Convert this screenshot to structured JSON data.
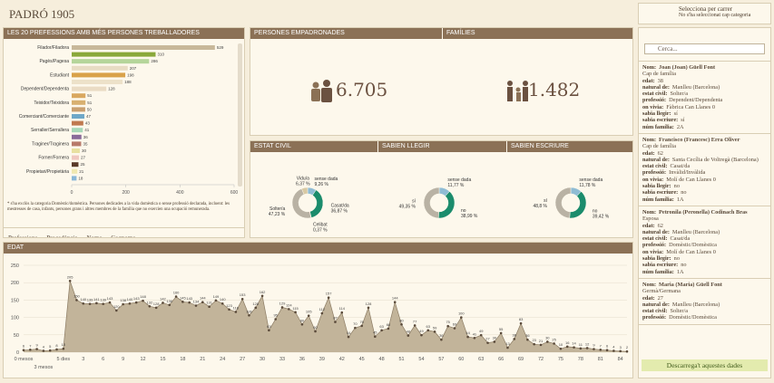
{
  "header": {
    "title": "PADRÓ 1905",
    "filter_title": "Selecciona per carrer",
    "filter_note": "No s'ha seleccionat cap categoria"
  },
  "kpis": [
    {
      "label": "PERSONES EMPADRONADES",
      "value": "6.705"
    },
    {
      "label": "FAMÍLIES",
      "value": "1.482"
    }
  ],
  "footnote": "* s'ha exclòs la categoria Domèstic/domèstica. Persones dedicades a la vida domèstica o sense professió declarada, incloent: les mestresses de casa, infants, persones grans i altres membres de la família que no exercien una ocupació remunerada.",
  "tabs": [
    "Professions",
    "Procedència",
    "Noms",
    "Cognoms"
  ],
  "search_placeholder": "Cerca...",
  "download": "Descarrega't aquestes dades",
  "people": [
    {
      "name_label": "Nom:",
      "name": "Joan (Joan) Güell Font",
      "role": "Cap de família",
      "fields": [
        {
          "label": "edat:",
          "value": "38"
        },
        {
          "label": "natural de:",
          "value": "Manlleu (Barcelona)"
        },
        {
          "label": "estat civil:",
          "value": "Solter/a"
        },
        {
          "label": "professió:",
          "value": "Dependent/Dependenta"
        },
        {
          "label": "on vivia:",
          "value": "Fàbrica Can Llanes 0"
        },
        {
          "label": "sabia llegir:",
          "value": "sí"
        },
        {
          "label": "sabia escriure:",
          "value": "sí"
        },
        {
          "label": "núm família:",
          "value": "2A"
        }
      ]
    },
    {
      "name_label": "Nom:",
      "name": "Francisco (Francesc) Erra Oliver",
      "role": "Cap de família",
      "fields": [
        {
          "label": "edat:",
          "value": "62"
        },
        {
          "label": "natural de:",
          "value": "Santa Cecília de Voltregà (Barcelona)"
        },
        {
          "label": "estat civil:",
          "value": "Casat/da"
        },
        {
          "label": "professió:",
          "value": "Invàlid/Invàlida"
        },
        {
          "label": "on vivia:",
          "value": "Molí de Can Llanes 0"
        },
        {
          "label": "sabia llegir:",
          "value": "no"
        },
        {
          "label": "sabia escriure:",
          "value": "no"
        },
        {
          "label": "núm família:",
          "value": "1A"
        }
      ]
    },
    {
      "name_label": "Nom:",
      "name": "Petronila (Peronella) Codinach Bras",
      "role": "Esposa",
      "fields": [
        {
          "label": "edat:",
          "value": "62"
        },
        {
          "label": "natural de:",
          "value": "Manlleu (Barcelona)"
        },
        {
          "label": "estat civil:",
          "value": "Casat/da"
        },
        {
          "label": "professió:",
          "value": "Domèstic/Domèstica"
        },
        {
          "label": "on vivia:",
          "value": "Molí de Can Llanes 0"
        },
        {
          "label": "sabia llegir:",
          "value": "no"
        },
        {
          "label": "sabia escriure:",
          "value": "no"
        },
        {
          "label": "núm família:",
          "value": "1A"
        }
      ]
    },
    {
      "name_label": "Nom:",
      "name": "Maria (Maria) Güell Font",
      "role": "Germà/Germana",
      "fields": [
        {
          "label": "edat:",
          "value": "27"
        },
        {
          "label": "natural de:",
          "value": "Manlleu (Barcelona)"
        },
        {
          "label": "estat civil:",
          "value": "Solter/a"
        },
        {
          "label": "professió:",
          "value": "Domèstic/Domèstica"
        }
      ]
    }
  ],
  "chart_data": [
    {
      "type": "bar",
      "orientation": "horizontal",
      "title": "LES 20 PREFESSIONS AMB MÉS PERSONES TREBALLADORES",
      "categories": [
        "Filador/Filadora",
        null,
        "Pagès/Pagesa",
        null,
        "Estudiant",
        null,
        "Dependent/Dependenta",
        null,
        "Teixidor/Teixidora",
        null,
        "Comerciant/Comerciante",
        null,
        "Serraller/Serrallera",
        null,
        "Traginer/Traginera",
        null,
        "Forner/Fornera",
        null,
        "Propietari/Propietària",
        null
      ],
      "values": [
        529,
        310,
        286,
        207,
        198,
        188,
        128,
        51,
        51,
        50,
        47,
        43,
        41,
        36,
        35,
        30,
        27,
        25,
        21,
        18
      ],
      "colors": [
        "#c8b89a",
        "#8aa83a",
        "#b5d59a",
        "#e8dcc4",
        "#d9a24a",
        "#ede1c9",
        "#eadcc4",
        "#d9a860",
        "#d8b070",
        "#c9a070",
        "#6ea8c8",
        "#c07a50",
        "#a8d8b8",
        "#8a6a9a",
        "#b87a6a",
        "#e8e0a0",
        "#f0c8c0",
        "#5a3a2a",
        "#f0e8b0",
        "#8ab8d8"
      ],
      "xlim": [
        0,
        600
      ],
      "xticks": [
        0,
        200,
        400,
        600
      ]
    },
    {
      "type": "pie",
      "title": "ESTAT CIVIL",
      "categories": [
        "sense dada",
        "Casat/da",
        "Celibat",
        "Solter/a",
        "Vidu/a"
      ],
      "values": [
        9.26,
        36.87,
        0.37,
        47.23,
        6.37
      ],
      "value_labels": [
        "9,26 %",
        "36,87 %",
        "0,37 %",
        "47,23 %",
        "6,37 %"
      ],
      "colors": [
        "#8fbcd4",
        "#1b8c6c",
        "#6b4b3a",
        "#b9b2a4",
        "#d8c9a3"
      ]
    },
    {
      "type": "pie",
      "title": "SABIEN LLEGIR",
      "categories": [
        "sense dada",
        "no",
        "sí"
      ],
      "values": [
        11.77,
        38.99,
        49.35
      ],
      "value_labels": [
        "11,77 %",
        "38,99 %",
        "49,35 %"
      ],
      "colors": [
        "#8fbcd4",
        "#1b8c6c",
        "#b9b2a4"
      ]
    },
    {
      "type": "pie",
      "title": "SABIEN ESCRIURE",
      "categories": [
        "sense dada",
        "no",
        "sí"
      ],
      "values": [
        11.78,
        39.42,
        48.8
      ],
      "value_labels": [
        "11,78 %",
        "39,42 %",
        "48,8 %"
      ],
      "colors": [
        "#8fbcd4",
        "#1b8c6c",
        "#b9b2a4"
      ]
    },
    {
      "type": "area",
      "title": "EDAT",
      "color": "#c2b49a",
      "categories": [
        "0 mesos",
        null,
        null,
        "3 mesos",
        null,
        null,
        "5 dies",
        null,
        null,
        "3",
        null,
        null,
        "6",
        null,
        null,
        "9",
        null,
        null,
        "12",
        null,
        null,
        "15",
        null,
        null,
        "18",
        null,
        null,
        "21",
        null,
        null,
        "24",
        null,
        null,
        "27",
        null,
        null,
        "30",
        null,
        null,
        "33",
        null,
        null,
        "36",
        null,
        null,
        "39",
        null,
        null,
        "42",
        null,
        null,
        "45",
        null,
        null,
        "48",
        null,
        null,
        "51",
        null,
        null,
        "54",
        null,
        null,
        "57",
        null,
        null,
        "60",
        null,
        null,
        "63",
        null,
        null,
        "66",
        null,
        null,
        "69",
        null,
        null,
        "72",
        null,
        null,
        "75",
        null,
        null,
        "78",
        null,
        null,
        "81",
        null,
        null,
        "84",
        null
      ],
      "values": [
        6,
        7,
        9,
        4,
        5,
        8,
        10,
        205,
        150,
        140,
        139,
        141,
        139,
        143,
        120,
        138,
        140,
        143,
        148,
        132,
        128,
        142,
        136,
        160,
        145,
        143,
        134,
        144,
        131,
        149,
        140,
        123,
        116,
        153,
        106,
        128,
        162,
        63,
        95,
        129,
        124,
        115,
        80,
        105,
        60,
        112,
        157,
        87,
        114,
        44,
        70,
        76,
        128,
        45,
        63,
        68,
        144,
        80,
        48,
        77,
        49,
        63,
        59,
        36,
        75,
        69,
        100,
        44,
        41,
        49,
        27,
        30,
        55,
        13,
        38,
        83,
        36,
        23,
        21,
        30,
        25,
        10,
        16,
        14,
        11,
        12,
        9,
        7,
        6,
        4,
        3,
        2
      ],
      "ylim": [
        0,
        250
      ],
      "yticks": [
        0,
        50,
        100,
        150,
        200,
        250
      ]
    }
  ]
}
